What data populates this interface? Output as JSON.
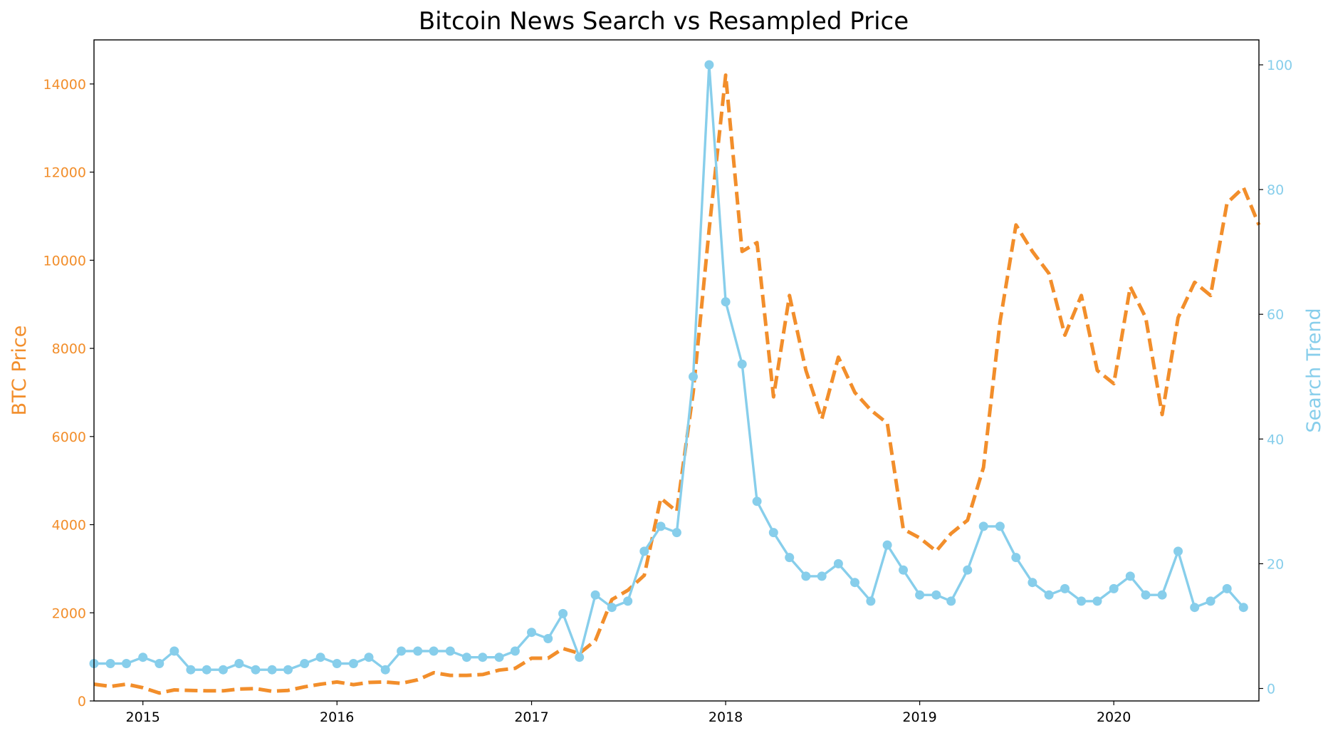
{
  "chart_data": {
    "type": "line",
    "title": "Bitcoin News Search vs Resampled Price",
    "x_ticks": [
      "2015",
      "2016",
      "2017",
      "2018",
      "2019",
      "2020"
    ],
    "xlim": [
      "2014-10-01",
      "2020-09-30"
    ],
    "grid": false,
    "legend": "none",
    "left_axis": {
      "label": "BTC Price",
      "color": "#f28e2b",
      "ylim": [
        0,
        15000
      ],
      "ticks": [
        "0",
        "2000",
        "4000",
        "6000",
        "8000",
        "10000",
        "12000",
        "14000"
      ]
    },
    "right_axis": {
      "label": "Search Trend",
      "color": "#87ceeb",
      "ylim": [
        -2,
        104
      ],
      "ticks": [
        "0",
        "20",
        "40",
        "60",
        "80",
        "100"
      ]
    },
    "series": [
      {
        "axis": "left",
        "color": "#f28e2b",
        "style": "dashed",
        "markers": false,
        "points": [
          [
            "2014-10-01",
            380
          ],
          [
            "2014-11-01",
            330
          ],
          [
            "2014-12-01",
            380
          ],
          [
            "2015-01-01",
            300
          ],
          [
            "2015-02-01",
            180
          ],
          [
            "2015-03-01",
            250
          ],
          [
            "2015-04-01",
            240
          ],
          [
            "2015-05-01",
            230
          ],
          [
            "2015-06-01",
            230
          ],
          [
            "2015-07-01",
            270
          ],
          [
            "2015-08-01",
            280
          ],
          [
            "2015-09-01",
            220
          ],
          [
            "2015-10-01",
            240
          ],
          [
            "2015-11-01",
            320
          ],
          [
            "2015-12-01",
            380
          ],
          [
            "2016-01-01",
            430
          ],
          [
            "2016-02-01",
            370
          ],
          [
            "2016-03-01",
            420
          ],
          [
            "2016-04-01",
            430
          ],
          [
            "2016-05-01",
            400
          ],
          [
            "2016-06-01",
            480
          ],
          [
            "2016-07-01",
            640
          ],
          [
            "2016-08-01",
            580
          ],
          [
            "2016-09-01",
            580
          ],
          [
            "2016-10-01",
            600
          ],
          [
            "2016-11-01",
            700
          ],
          [
            "2016-12-01",
            740
          ],
          [
            "2017-01-01",
            970
          ],
          [
            "2017-02-01",
            970
          ],
          [
            "2017-03-01",
            1190
          ],
          [
            "2017-04-01",
            1080
          ],
          [
            "2017-05-01",
            1370
          ],
          [
            "2017-06-01",
            2300
          ],
          [
            "2017-07-01",
            2510
          ],
          [
            "2017-08-01",
            2850
          ],
          [
            "2017-09-01",
            4600
          ],
          [
            "2017-10-01",
            4300
          ],
          [
            "2017-11-01",
            7000
          ],
          [
            "2017-12-01",
            10700
          ],
          [
            "2018-01-01",
            14200
          ],
          [
            "2018-02-01",
            10200
          ],
          [
            "2018-03-01",
            10400
          ],
          [
            "2018-04-01",
            6900
          ],
          [
            "2018-05-01",
            9200
          ],
          [
            "2018-06-01",
            7500
          ],
          [
            "2018-07-01",
            6400
          ],
          [
            "2018-08-01",
            7800
          ],
          [
            "2018-09-01",
            7000
          ],
          [
            "2018-10-01",
            6600
          ],
          [
            "2018-11-01",
            6300
          ],
          [
            "2018-12-01",
            3900
          ],
          [
            "2019-01-01",
            3700
          ],
          [
            "2019-02-01",
            3400
          ],
          [
            "2019-03-01",
            3800
          ],
          [
            "2019-04-01",
            4100
          ],
          [
            "2019-05-01",
            5300
          ],
          [
            "2019-06-01",
            8600
          ],
          [
            "2019-07-01",
            10800
          ],
          [
            "2019-08-01",
            10200
          ],
          [
            "2019-09-01",
            9700
          ],
          [
            "2019-10-01",
            8300
          ],
          [
            "2019-11-01",
            9200
          ],
          [
            "2019-12-01",
            7500
          ],
          [
            "2020-01-01",
            7200
          ],
          [
            "2020-02-01",
            9400
          ],
          [
            "2020-03-01",
            8700
          ],
          [
            "2020-04-01",
            6500
          ],
          [
            "2020-05-01",
            8700
          ],
          [
            "2020-06-01",
            9500
          ],
          [
            "2020-07-01",
            9200
          ],
          [
            "2020-08-01",
            11300
          ],
          [
            "2020-09-01",
            11650
          ],
          [
            "2020-09-30",
            10800
          ]
        ]
      },
      {
        "axis": "right",
        "color": "#87ceeb",
        "style": "solid",
        "markers": true,
        "points": [
          [
            "2014-10-01",
            4
          ],
          [
            "2014-11-01",
            4
          ],
          [
            "2014-12-01",
            4
          ],
          [
            "2015-01-01",
            5
          ],
          [
            "2015-02-01",
            4
          ],
          [
            "2015-03-01",
            6
          ],
          [
            "2015-04-01",
            3
          ],
          [
            "2015-05-01",
            3
          ],
          [
            "2015-06-01",
            3
          ],
          [
            "2015-07-01",
            4
          ],
          [
            "2015-08-01",
            3
          ],
          [
            "2015-09-01",
            3
          ],
          [
            "2015-10-01",
            3
          ],
          [
            "2015-11-01",
            4
          ],
          [
            "2015-12-01",
            5
          ],
          [
            "2016-01-01",
            4
          ],
          [
            "2016-02-01",
            4
          ],
          [
            "2016-03-01",
            5
          ],
          [
            "2016-04-01",
            3
          ],
          [
            "2016-05-01",
            6
          ],
          [
            "2016-06-01",
            6
          ],
          [
            "2016-07-01",
            6
          ],
          [
            "2016-08-01",
            6
          ],
          [
            "2016-09-01",
            5
          ],
          [
            "2016-10-01",
            5
          ],
          [
            "2016-11-01",
            5
          ],
          [
            "2016-12-01",
            6
          ],
          [
            "2017-01-01",
            9
          ],
          [
            "2017-02-01",
            8
          ],
          [
            "2017-03-01",
            12
          ],
          [
            "2017-04-01",
            5
          ],
          [
            "2017-05-01",
            15
          ],
          [
            "2017-06-01",
            13
          ],
          [
            "2017-07-01",
            14
          ],
          [
            "2017-08-01",
            22
          ],
          [
            "2017-09-01",
            26
          ],
          [
            "2017-10-01",
            25
          ],
          [
            "2017-11-01",
            50
          ],
          [
            "2017-12-01",
            100
          ],
          [
            "2018-01-01",
            62
          ],
          [
            "2018-02-01",
            52
          ],
          [
            "2018-03-01",
            30
          ],
          [
            "2018-04-01",
            25
          ],
          [
            "2018-05-01",
            21
          ],
          [
            "2018-06-01",
            18
          ],
          [
            "2018-07-01",
            18
          ],
          [
            "2018-08-01",
            20
          ],
          [
            "2018-09-01",
            17
          ],
          [
            "2018-10-01",
            14
          ],
          [
            "2018-11-01",
            23
          ],
          [
            "2018-12-01",
            19
          ],
          [
            "2019-01-01",
            15
          ],
          [
            "2019-02-01",
            15
          ],
          [
            "2019-03-01",
            14
          ],
          [
            "2019-04-01",
            19
          ],
          [
            "2019-05-01",
            26
          ],
          [
            "2019-06-01",
            26
          ],
          [
            "2019-07-01",
            21
          ],
          [
            "2019-08-01",
            17
          ],
          [
            "2019-09-01",
            15
          ],
          [
            "2019-10-01",
            16
          ],
          [
            "2019-11-01",
            14
          ],
          [
            "2019-12-01",
            14
          ],
          [
            "2020-01-01",
            16
          ],
          [
            "2020-02-01",
            18
          ],
          [
            "2020-03-01",
            15
          ],
          [
            "2020-04-01",
            15
          ],
          [
            "2020-05-01",
            22
          ],
          [
            "2020-06-01",
            13
          ],
          [
            "2020-07-01",
            14
          ],
          [
            "2020-08-01",
            16
          ],
          [
            "2020-09-01",
            13
          ]
        ]
      }
    ]
  }
}
